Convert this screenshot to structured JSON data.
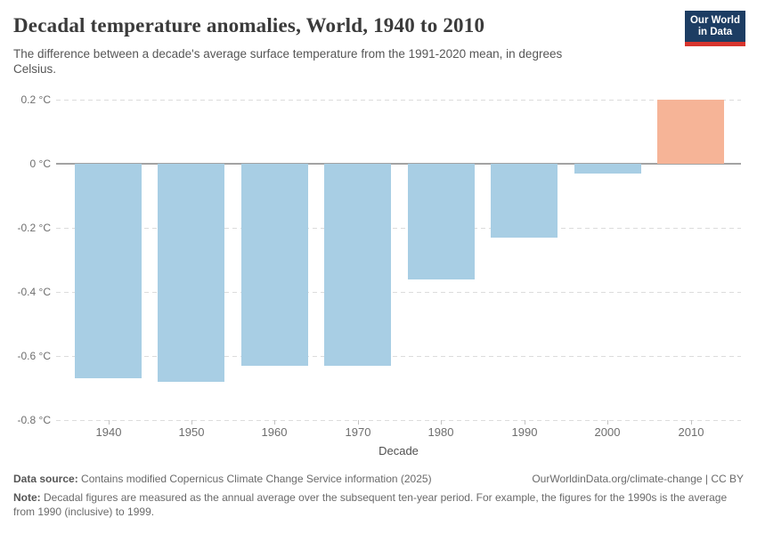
{
  "header": {
    "title": "Decadal temperature anomalies, World, 1940 to 2010",
    "subtitle_lines": [
      "The difference between a decade's average surface temperature from the 1991-2020 mean, in degrees",
      "Celsius."
    ],
    "logo": {
      "line1": "Our World",
      "line2": "in Data"
    }
  },
  "brand": {
    "logo_bg": "#1d3d63",
    "logo_accent": "#d8352e"
  },
  "chart_data": {
    "type": "bar",
    "title": "Decadal temperature anomalies, World, 1940 to 2010",
    "categories": [
      "1940",
      "1950",
      "1960",
      "1970",
      "1980",
      "1990",
      "2000",
      "2010"
    ],
    "values": [
      -0.67,
      -0.68,
      -0.63,
      -0.63,
      -0.36,
      -0.23,
      -0.03,
      0.2
    ],
    "xlabel": "Decade",
    "ylabel": "",
    "ylim": [
      -0.8,
      0.2
    ],
    "yticks": [
      0.2,
      0,
      -0.2,
      -0.4,
      -0.6,
      -0.8
    ],
    "ytick_labels": [
      "0.2 °C",
      "0 °C",
      "-0.2 °C",
      "-0.4 °C",
      "-0.6 °C",
      "-0.8 °C"
    ],
    "grid": "horizontal-dashed",
    "legend": "none",
    "colors": {
      "negative_bar": "#a8cee4",
      "positive_bar": "#f6b497"
    }
  },
  "footer": {
    "source_label": "Data source:",
    "source_text": " Contains modified Copernicus Climate Change Service information (2025)",
    "link_text": "OurWorldinData.org/climate-change | CC BY",
    "note_label": "Note:",
    "note_text": " Decadal figures are measured as the annual average over the subsequent ten-year period. For example, the figures for the 1990s is the average from 1990 (inclusive) to 1999."
  }
}
